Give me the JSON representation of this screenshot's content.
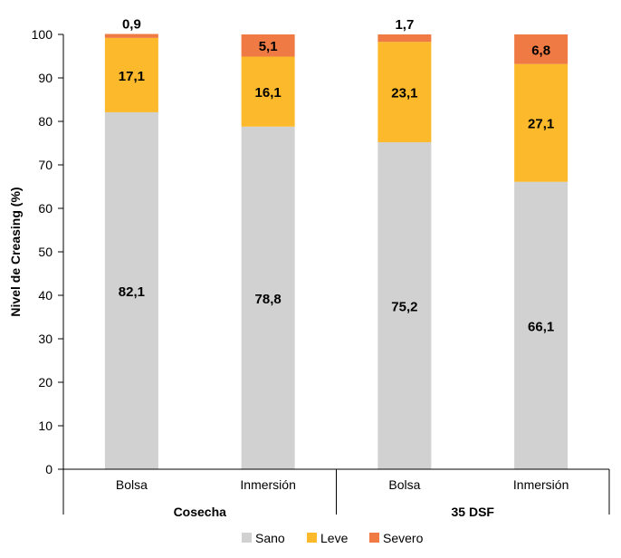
{
  "chart_data": {
    "type": "bar",
    "stacked": true,
    "title": "",
    "ylabel": "Nivel de Creasing (%)",
    "xlabel": "",
    "ylim": [
      0,
      100
    ],
    "yticks": [
      "0",
      "10",
      "20",
      "30",
      "40",
      "50",
      "60",
      "70",
      "80",
      "90",
      "100"
    ],
    "grid": false,
    "legend_position": "bottom",
    "groups": [
      {
        "name": "Cosecha",
        "categories": [
          "Bolsa",
          "Inmersión"
        ]
      },
      {
        "name": "35 DSF",
        "categories": [
          "Bolsa",
          "Inmersión"
        ]
      }
    ],
    "categories": [
      "Bolsa",
      "Inmersión",
      "Bolsa",
      "Inmersión"
    ],
    "series": [
      {
        "name": "Sano",
        "color": "#d0d1d0",
        "values": [
          82.1,
          78.8,
          75.2,
          66.1
        ],
        "labels": [
          "82,1",
          "78,8",
          "75,2",
          "66,1"
        ]
      },
      {
        "name": "Leve",
        "color": "#fbb92b",
        "values": [
          17.1,
          16.1,
          23.1,
          27.1
        ],
        "labels": [
          "17,1",
          "16,1",
          "23,1",
          "27,1"
        ]
      },
      {
        "name": "Severo",
        "color": "#ef7a43",
        "values": [
          0.9,
          5.1,
          1.7,
          6.8
        ],
        "labels": [
          "0,9",
          "5,1",
          "1,7",
          "6,8"
        ]
      }
    ]
  }
}
